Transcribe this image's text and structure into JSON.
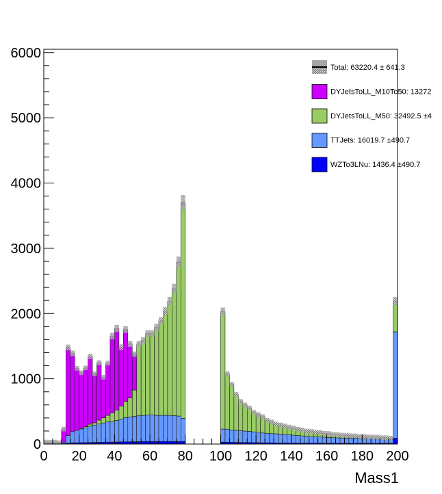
{
  "chart_data": {
    "type": "bar",
    "stacked": true,
    "xlabel": "Mass1",
    "xlim": [
      0,
      200
    ],
    "ylim": [
      0,
      6050
    ],
    "bin_width": 2.5,
    "x_ticks": [
      0,
      20,
      40,
      60,
      80,
      100,
      120,
      140,
      160,
      180,
      200
    ],
    "y_ticks": [
      0,
      1000,
      2000,
      3000,
      4000,
      5000,
      6000
    ],
    "grid": false,
    "legend_position": "top-right",
    "colors": {
      "DYJetsToLL_M10To50": "#cc00ff",
      "DYJetsToLL_M50": "#99cc66",
      "TTJets": "#6699ff",
      "WZTo3LNu": "#0000ff",
      "band": "#a9a9a9",
      "total_line": "#000000"
    },
    "legend": [
      {
        "key": "total",
        "label": "Total: 63220.4 ± 641.3"
      },
      {
        "key": "DYJetsToLL_M10To50",
        "label": "DYJetsToLL_M10To50: 13272"
      },
      {
        "key": "DYJetsToLL_M50",
        "label": "DYJetsToLL_M50: 32492.5 ±4"
      },
      {
        "key": "TTJets",
        "label": "TTJets: 16019.7 ±490.7"
      },
      {
        "key": "WZTo3LNu",
        "label": "WZTo3LNu: 1436.4 ±490.7"
      }
    ],
    "x_edges_start": 0,
    "series": [
      {
        "name": "WZTo3LNu",
        "key": "WZTo3LNu",
        "values": [
          10,
          8,
          10,
          5,
          10,
          15,
          20,
          20,
          22,
          22,
          24,
          26,
          27,
          28,
          30,
          30,
          32,
          34,
          35,
          36,
          37,
          38,
          38,
          40,
          40,
          40,
          40,
          40,
          40,
          40,
          40,
          40,
          0,
          0,
          0,
          0,
          0,
          0,
          0,
          0,
          30,
          28,
          27,
          26,
          25,
          24,
          24,
          22,
          22,
          20,
          20,
          20,
          18,
          18,
          18,
          16,
          16,
          15,
          15,
          15,
          14,
          14,
          14,
          13,
          13,
          13,
          12,
          12,
          12,
          12,
          12,
          12,
          12,
          12,
          12,
          12,
          12,
          12,
          12,
          90
        ]
      },
      {
        "name": "TTJets",
        "key": "TTJets",
        "values": [
          20,
          20,
          20,
          15,
          20,
          115,
          170,
          190,
          210,
          225,
          250,
          265,
          280,
          295,
          310,
          315,
          330,
          350,
          370,
          380,
          390,
          395,
          400,
          405,
          405,
          400,
          400,
          400,
          400,
          395,
          390,
          355,
          0,
          0,
          0,
          0,
          0,
          0,
          0,
          0,
          200,
          200,
          190,
          185,
          180,
          175,
          170,
          165,
          160,
          150,
          145,
          140,
          140,
          135,
          130,
          125,
          120,
          115,
          110,
          105,
          100,
          98,
          95,
          92,
          88,
          85,
          82,
          80,
          78,
          76,
          74,
          72,
          70,
          68,
          66,
          64,
          62,
          60,
          58,
          1630
        ]
      },
      {
        "name": "DYJetsToLL_M50",
        "key": "DYJetsToLL_M50",
        "values": [
          0,
          0,
          0,
          0,
          0,
          0,
          0,
          0,
          10,
          20,
          30,
          35,
          60,
          80,
          100,
          130,
          160,
          200,
          250,
          290,
          400,
          1100,
          1150,
          1250,
          1250,
          1350,
          1450,
          1600,
          1750,
          1950,
          2350,
          3270,
          0,
          0,
          0,
          0,
          0,
          0,
          0,
          0,
          1800,
          850,
          700,
          550,
          450,
          400,
          360,
          300,
          270,
          250,
          200,
          180,
          150,
          140,
          130,
          120,
          110,
          100,
          90,
          80,
          80,
          70,
          70,
          60,
          60,
          50,
          50,
          45,
          45,
          40,
          40,
          35,
          35,
          30,
          30,
          30,
          25,
          25,
          20,
          470
        ]
      },
      {
        "name": "DYJetsToLL_M10To50",
        "key": "DYJetsToLL_M10To50",
        "values": [
          0,
          0,
          0,
          0,
          200,
          1350,
          1200,
          950,
          850,
          900,
          1040,
          750,
          880,
          620,
          800,
          1180,
          1250,
          900,
          1100,
          830,
          550,
          0,
          0,
          0,
          0,
          0,
          0,
          0,
          0,
          0,
          10,
          40,
          0,
          0,
          0,
          0,
          0,
          0,
          0,
          0,
          0,
          0,
          0,
          0,
          0,
          0,
          0,
          0,
          0,
          0,
          0,
          0,
          0,
          0,
          0,
          0,
          0,
          0,
          0,
          0,
          0,
          0,
          0,
          0,
          0,
          0,
          0,
          0,
          0,
          0,
          0,
          0,
          0,
          0,
          0,
          0,
          0,
          0,
          0,
          0
        ]
      }
    ]
  }
}
